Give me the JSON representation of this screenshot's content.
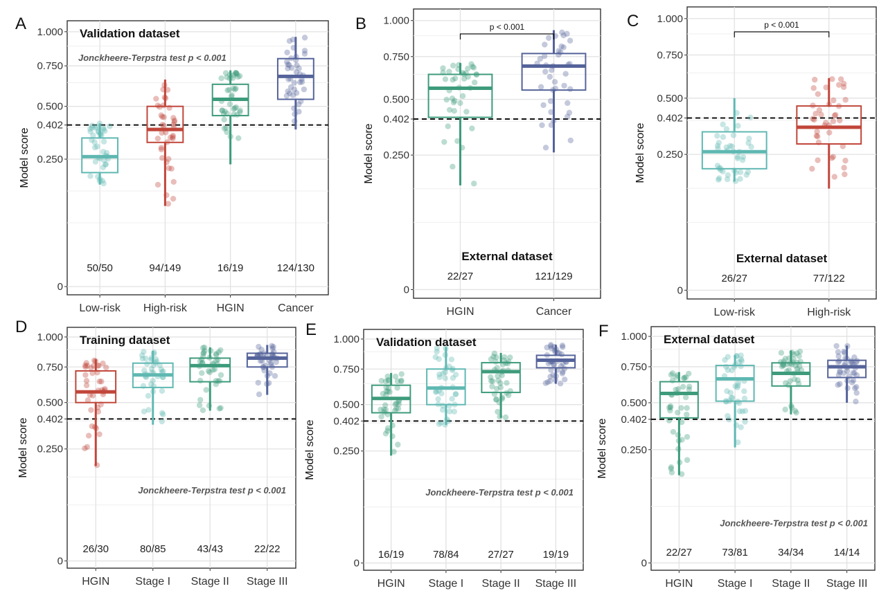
{
  "figure": {
    "colors": {
      "Low-risk": "#5fb8b2",
      "High-risk": "#c1463a",
      "HGIN": "#3d9b7b",
      "Cancer": "#55639a",
      "Stage I": "#5fb8b2",
      "Stage II": "#3d9b7b",
      "Stage III": "#55639a",
      "Training HGIN": "#c1463a"
    }
  },
  "chart_data": [
    {
      "panel": "A",
      "type": "box",
      "title": "Validation dataset",
      "annotation": "Jonckheere-Terpstra test p < 0.001",
      "ylabel": "Model score",
      "xlabel": "",
      "ylim": [
        0,
        1.0
      ],
      "yticks": [
        0,
        0.25,
        0.402,
        0.5,
        0.75,
        1.0
      ],
      "ytick_labels": [
        "0",
        "0.250",
        "0.402",
        "0.500",
        "0.750",
        "1.000"
      ],
      "threshold": 0.402,
      "categories": [
        "Low-risk",
        "High-risk",
        "HGIN",
        "Cancer"
      ],
      "boxes": [
        {
          "name": "Low-risk",
          "min": 0.16,
          "q1": 0.2,
          "median": 0.26,
          "q3": 0.34,
          "max": 0.41,
          "count": "50/50"
        },
        {
          "name": "High-risk",
          "min": 0.1,
          "q1": 0.32,
          "median": 0.38,
          "q3": 0.5,
          "max": 0.66,
          "count": "94/149"
        },
        {
          "name": "HGIN",
          "min": 0.23,
          "q1": 0.45,
          "median": 0.54,
          "q3": 0.63,
          "max": 0.72,
          "count": "16/19"
        },
        {
          "name": "Cancer",
          "min": 0.38,
          "q1": 0.54,
          "median": 0.68,
          "q3": 0.8,
          "max": 0.96,
          "count": "124/130"
        }
      ]
    },
    {
      "panel": "B",
      "type": "box",
      "title": "External dataset",
      "pvalue": "p < 0.001",
      "ylabel": "Model score",
      "xlabel": "",
      "ylim": [
        0,
        1.0
      ],
      "yticks": [
        0,
        0.25,
        0.402,
        0.5,
        0.75,
        1.0
      ],
      "ytick_labels": [
        "0",
        "0.250",
        "0.402",
        "0.500",
        "0.750",
        "1.000"
      ],
      "threshold": 0.402,
      "categories": [
        "HGIN",
        "Cancer"
      ],
      "boxes": [
        {
          "name": "HGIN",
          "min": 0.15,
          "q1": 0.41,
          "median": 0.56,
          "q3": 0.64,
          "max": 0.71,
          "count": "22/27"
        },
        {
          "name": "Cancer",
          "min": 0.26,
          "q1": 0.55,
          "median": 0.69,
          "q3": 0.77,
          "max": 0.93,
          "count": "121/129"
        }
      ]
    },
    {
      "panel": "C",
      "type": "box",
      "title": "External dataset",
      "pvalue": "p < 0.001",
      "ylabel": "Model score",
      "xlabel": "",
      "ylim": [
        0,
        1.0
      ],
      "yticks": [
        0,
        0.25,
        0.402,
        0.5,
        0.75,
        1.0
      ],
      "ytick_labels": [
        "0",
        "0.250",
        "0.402",
        "0.500",
        "0.750",
        "1.000"
      ],
      "threshold": 0.402,
      "categories": [
        "Low-risk",
        "High-risk"
      ],
      "boxes": [
        {
          "name": "Low-risk",
          "min": 0.16,
          "q1": 0.2,
          "median": 0.26,
          "q3": 0.34,
          "max": 0.5,
          "count": "26/27"
        },
        {
          "name": "High-risk",
          "min": 0.14,
          "q1": 0.29,
          "median": 0.36,
          "q3": 0.46,
          "max": 0.61,
          "count": "77/122"
        }
      ]
    },
    {
      "panel": "D",
      "type": "box",
      "title": "Training dataset",
      "annotation": "Jonckheere-Terpstra test p < 0.001",
      "ylabel": "Model score",
      "xlabel": "",
      "ylim": [
        0,
        1.0
      ],
      "yticks": [
        0,
        0.25,
        0.402,
        0.5,
        0.75,
        1.0
      ],
      "ytick_labels": [
        "0",
        "0.250",
        "0.402",
        "0.500",
        "0.750",
        "1.000"
      ],
      "threshold": 0.402,
      "categories": [
        "HGIN",
        "Stage I",
        "Stage II",
        "Stage III"
      ],
      "boxes": [
        {
          "name": "HGIN",
          "min": 0.18,
          "q1": 0.5,
          "median": 0.57,
          "q3": 0.72,
          "max": 0.81,
          "count": "26/30"
        },
        {
          "name": "Stage I",
          "min": 0.37,
          "q1": 0.6,
          "median": 0.69,
          "q3": 0.78,
          "max": 0.88,
          "count": "80/85"
        },
        {
          "name": "Stage II",
          "min": 0.45,
          "q1": 0.64,
          "median": 0.76,
          "q3": 0.82,
          "max": 0.91,
          "count": "43/43"
        },
        {
          "name": "Stage III",
          "min": 0.55,
          "q1": 0.75,
          "median": 0.82,
          "q3": 0.86,
          "max": 0.93,
          "count": "22/22"
        }
      ]
    },
    {
      "panel": "E",
      "type": "box",
      "title": "Validation dataset",
      "annotation": "Jonckheere-Terpstra test p < 0.001",
      "ylabel": "Model score",
      "xlabel": "",
      "ylim": [
        0,
        1.0
      ],
      "yticks": [
        0,
        0.25,
        0.402,
        0.5,
        0.75,
        1.0
      ],
      "ytick_labels": [
        "0",
        "0.250",
        "0.402",
        "0.500",
        "0.750",
        "1.000"
      ],
      "threshold": 0.402,
      "categories": [
        "HGIN",
        "Stage I",
        "Stage II",
        "Stage III"
      ],
      "boxes": [
        {
          "name": "HGIN",
          "min": 0.23,
          "q1": 0.45,
          "median": 0.54,
          "q3": 0.63,
          "max": 0.72,
          "count": "16/19"
        },
        {
          "name": "Stage I",
          "min": 0.38,
          "q1": 0.5,
          "median": 0.61,
          "q3": 0.75,
          "max": 0.93,
          "count": "78/84"
        },
        {
          "name": "Stage II",
          "min": 0.42,
          "q1": 0.58,
          "median": 0.73,
          "q3": 0.8,
          "max": 0.88,
          "count": "27/27"
        },
        {
          "name": "Stage III",
          "min": 0.64,
          "q1": 0.76,
          "median": 0.82,
          "q3": 0.86,
          "max": 0.95,
          "count": "19/19"
        }
      ]
    },
    {
      "panel": "F",
      "type": "box",
      "title": "External dataset",
      "annotation": "Jonckheere-Terpstra test p < 0.001",
      "ylabel": "Model score",
      "xlabel": "",
      "ylim": [
        0,
        1.0
      ],
      "yticks": [
        0,
        0.25,
        0.402,
        0.5,
        0.75,
        1.0
      ],
      "ytick_labels": [
        "0",
        "0.250",
        "0.402",
        "0.500",
        "0.750",
        "1.000"
      ],
      "threshold": 0.402,
      "categories": [
        "HGIN",
        "Stage I",
        "Stage II",
        "Stage III"
      ],
      "boxes": [
        {
          "name": "HGIN",
          "min": 0.15,
          "q1": 0.41,
          "median": 0.56,
          "q3": 0.64,
          "max": 0.71,
          "count": "22/27"
        },
        {
          "name": "Stage I",
          "min": 0.26,
          "q1": 0.51,
          "median": 0.66,
          "q3": 0.76,
          "max": 0.84,
          "count": "73/81"
        },
        {
          "name": "Stage II",
          "min": 0.43,
          "q1": 0.61,
          "median": 0.7,
          "q3": 0.78,
          "max": 0.88,
          "count": "34/34"
        },
        {
          "name": "Stage III",
          "min": 0.5,
          "q1": 0.67,
          "median": 0.75,
          "q3": 0.8,
          "max": 0.92,
          "count": "14/14"
        }
      ]
    }
  ]
}
